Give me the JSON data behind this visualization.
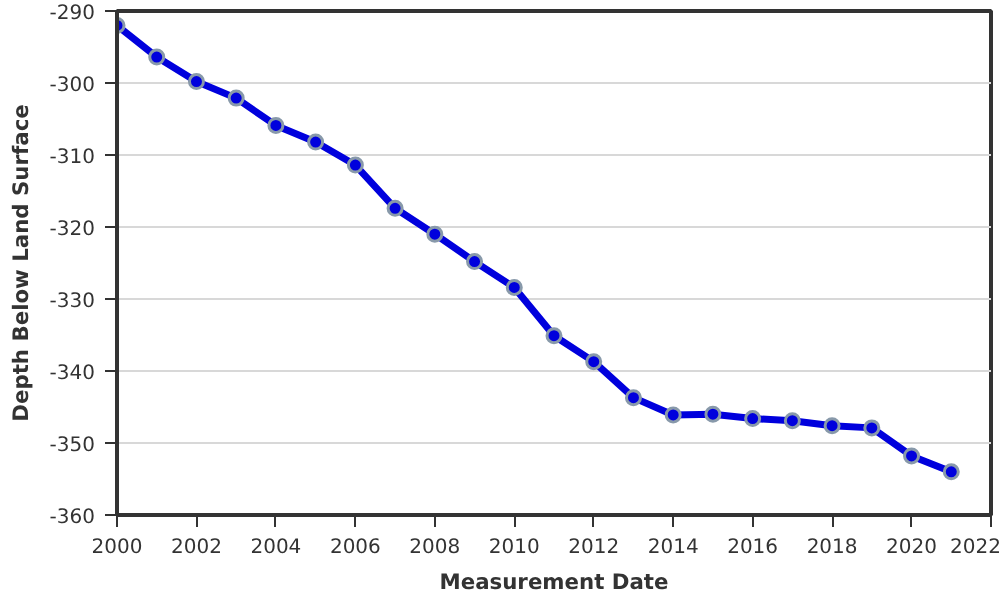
{
  "chart_data": {
    "type": "line",
    "xlabel": "Measurement Date",
    "ylabel": "Depth Below Land Surface",
    "x": [
      2000,
      2001,
      2002,
      2003,
      2004,
      2005,
      2006,
      2007,
      2008,
      2009,
      2010,
      2011,
      2012,
      2013,
      2014,
      2015,
      2016,
      2017,
      2018,
      2019,
      2020,
      2021
    ],
    "series": [
      {
        "color": "#0000dd",
        "values": [
          -292,
          -296.4,
          -299.8,
          -302.1,
          -305.9,
          -308.2,
          -311.4,
          -317.4,
          -321,
          -324.8,
          -328.4,
          -335.1,
          -338.7,
          -343.7,
          -346.1,
          -346,
          -346.6,
          -346.9,
          -347.6,
          -347.9,
          -351.8,
          -354
        ]
      }
    ],
    "xlim": [
      2000,
      2022
    ],
    "xticks": [
      2000,
      2002,
      2004,
      2006,
      2008,
      2010,
      2012,
      2014,
      2016,
      2018,
      2020,
      2022
    ],
    "ylim": [
      -360,
      -290
    ],
    "yticks": [
      -360,
      -350,
      -340,
      -330,
      -320,
      -310,
      -300,
      -290
    ],
    "grid": "y",
    "marker": "circle",
    "line_style": "solid"
  }
}
